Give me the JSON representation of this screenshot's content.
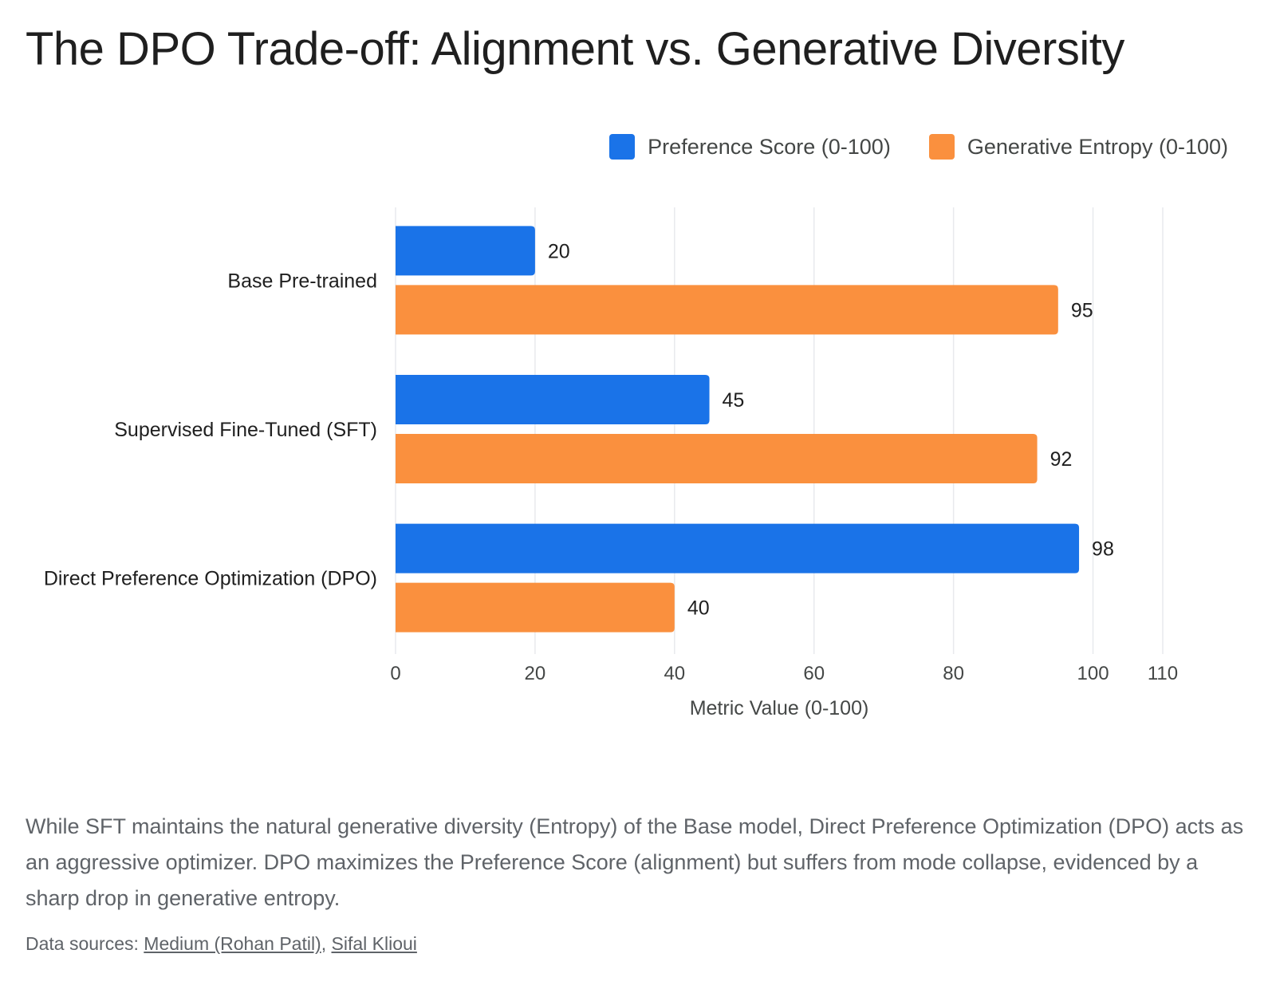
{
  "title": "The DPO Trade-off: Alignment vs. Generative Diversity",
  "colors": {
    "preference": "#1a73e8",
    "entropy": "#fa903e",
    "grid": "#e8eaed"
  },
  "chart_data": {
    "type": "bar",
    "orientation": "horizontal",
    "categories": [
      "Base Pre-trained",
      "Supervised Fine-Tuned (SFT)",
      "Direct Preference Optimization (DPO)"
    ],
    "series": [
      {
        "name": "Preference Score (0-100)",
        "values": [
          20,
          45,
          98
        ],
        "color": "#1a73e8"
      },
      {
        "name": "Generative Entropy (0-100)",
        "values": [
          95,
          92,
          40
        ],
        "color": "#fa903e"
      }
    ],
    "xlabel": "Metric Value (0-100)",
    "ylabel": "",
    "xlim": [
      0,
      110
    ],
    "xticks": [
      0,
      20,
      40,
      60,
      80,
      100,
      110
    ],
    "grid": true,
    "legend": "top-right",
    "data_labels": true
  },
  "caption": "While SFT maintains the natural generative diversity (Entropy) of the Base model, Direct Preference Optimization (DPO) acts as an aggressive optimizer. DPO maximizes the Preference Score (alignment) but suffers from mode collapse, evidenced by a sharp drop in generative entropy.",
  "sources": {
    "prefix": "Data sources: ",
    "links": [
      "Medium (Rohan Patil)",
      "Sifal Klioui"
    ],
    "separator": ", "
  }
}
